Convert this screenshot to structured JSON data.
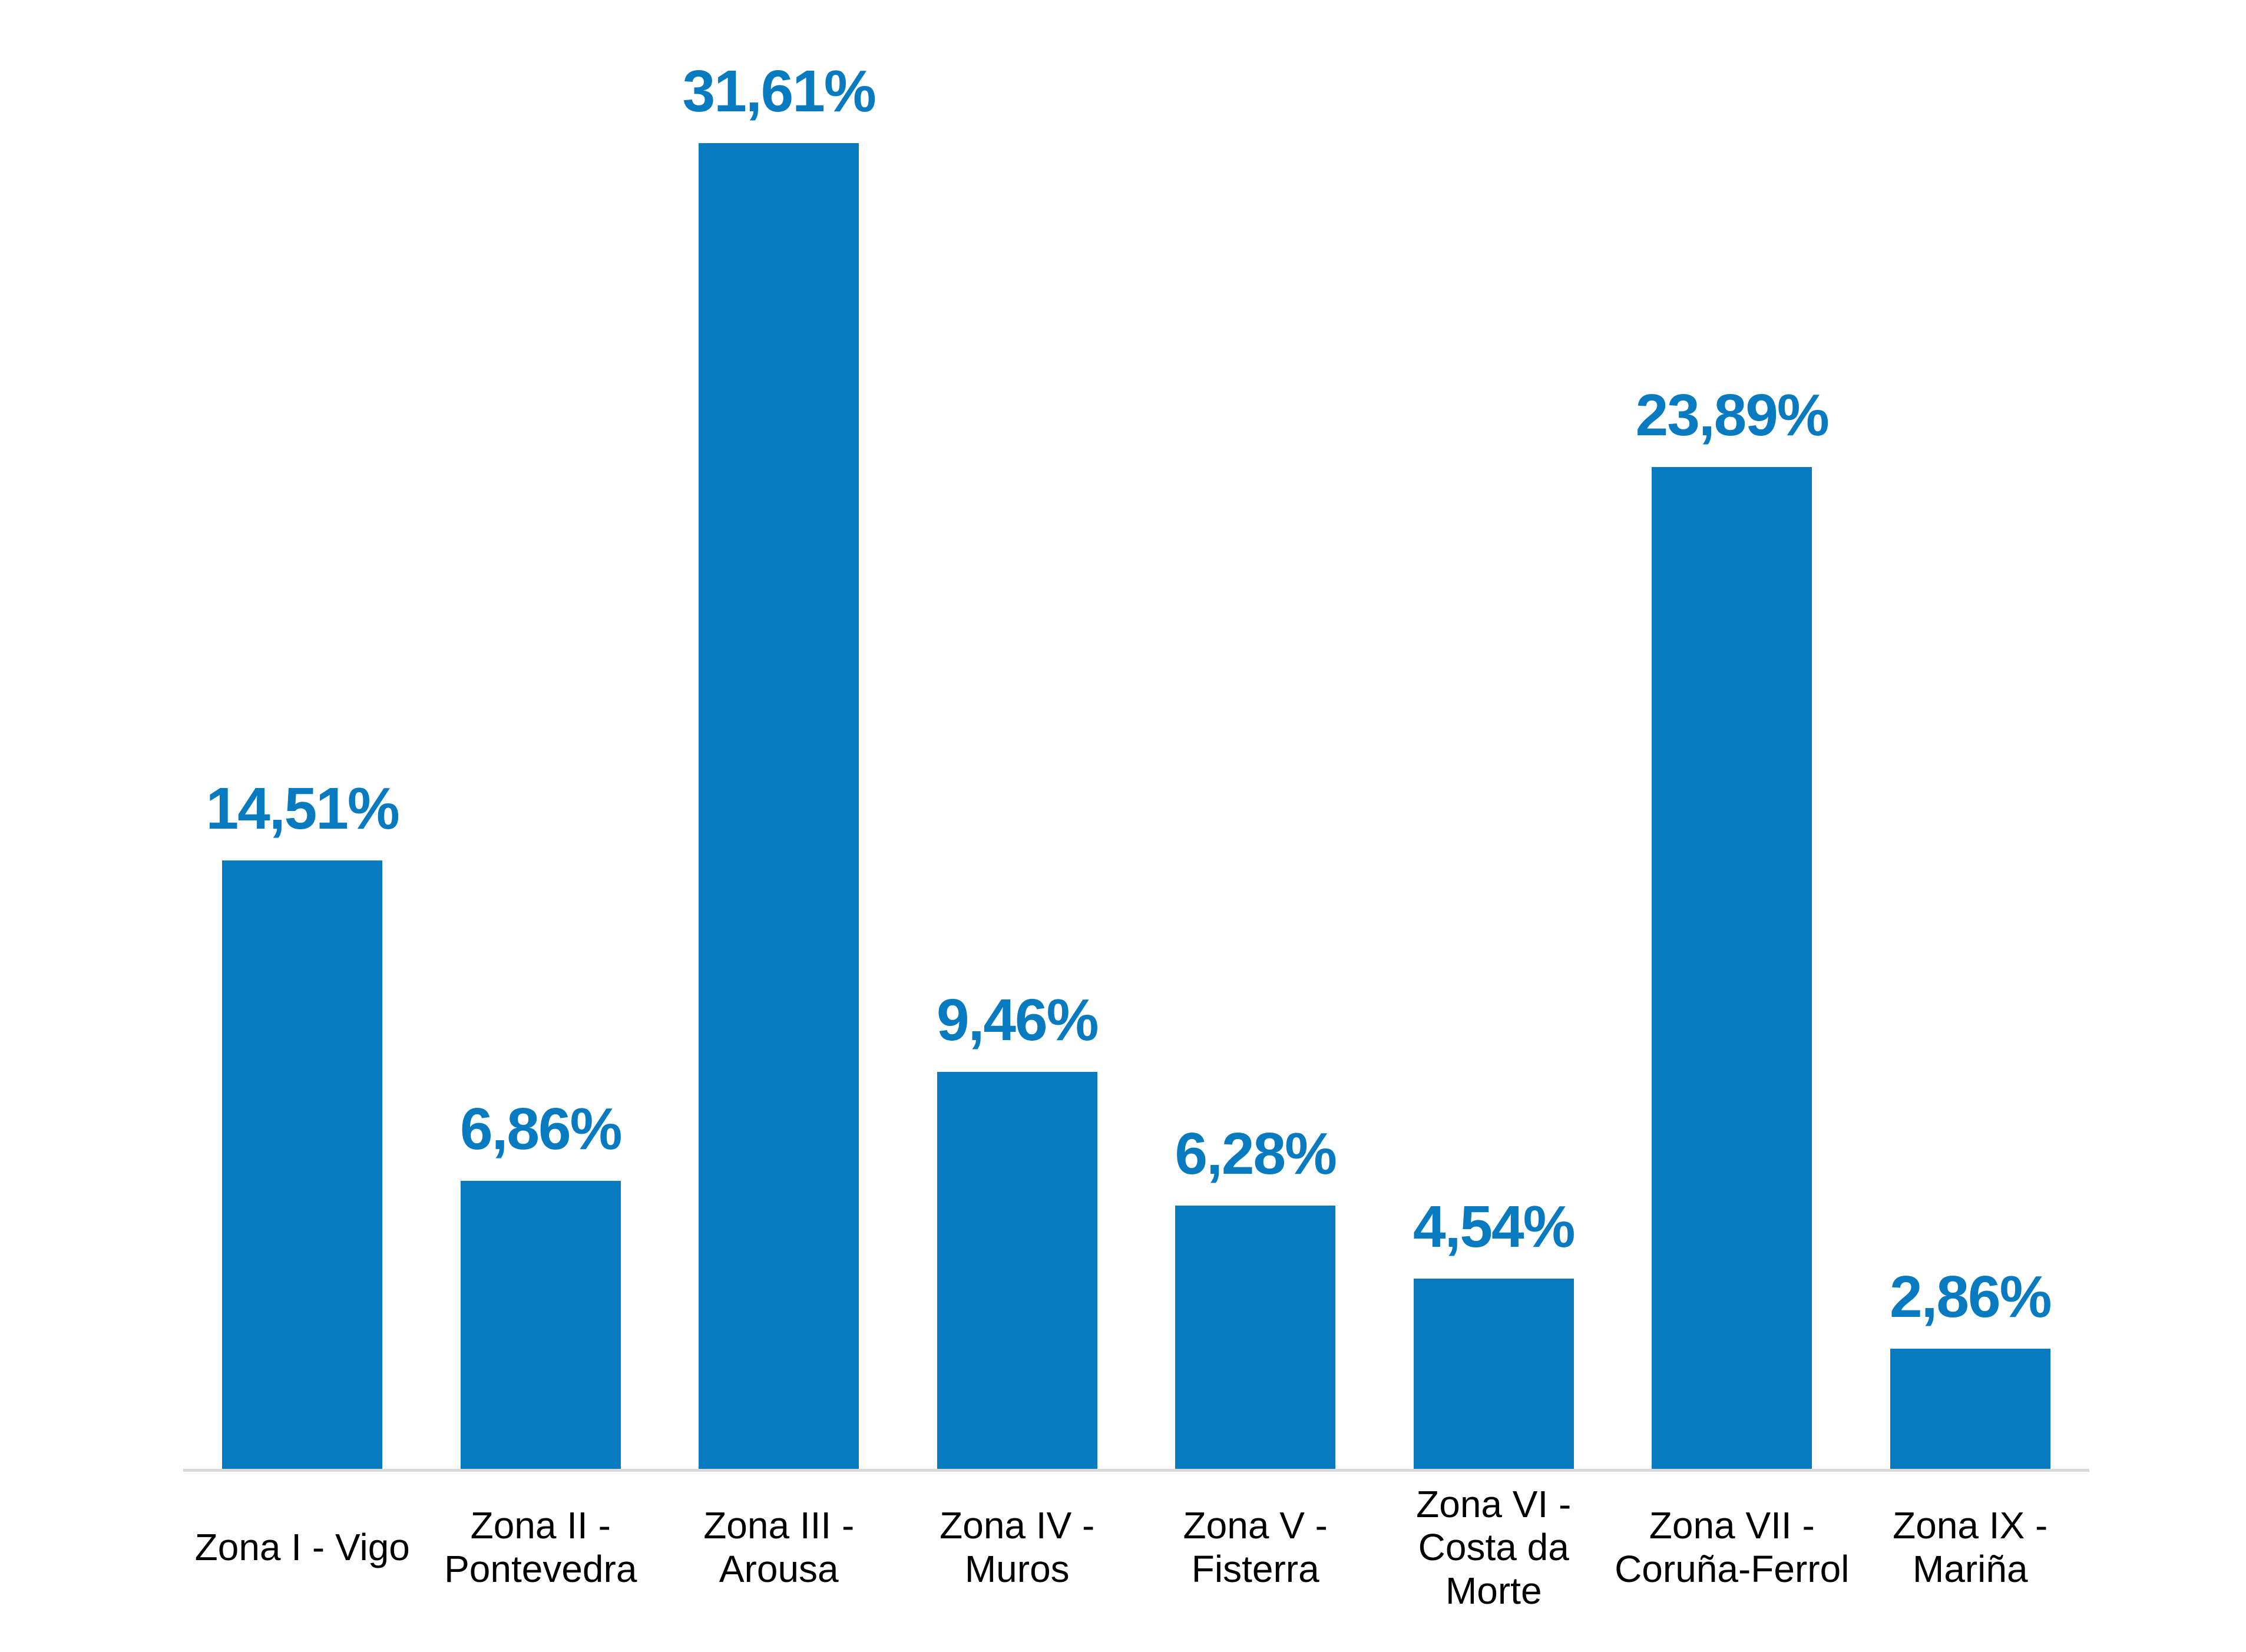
{
  "chart_data": {
    "type": "bar",
    "categories": [
      "Zona I - Vigo",
      "Zona II -\nPontevedra",
      "Zona III -\nArousa",
      "Zona IV -\nMuros",
      "Zona V -\nFisterra",
      "Zona VI -\nCosta da\nMorte",
      "Zona VII -\nCoruña-Ferrol",
      "Zona IX -\nMariña"
    ],
    "values": [
      14.51,
      6.86,
      31.61,
      9.46,
      6.28,
      4.54,
      23.89,
      2.86
    ],
    "data_labels": [
      "14,51%",
      "6,86%",
      "31,61%",
      "9,46%",
      "6,28%",
      "4,54%",
      "23,89%",
      "2,86%"
    ],
    "grid": false,
    "legend": false,
    "colors": {
      "bar": "#087ac0",
      "value_label": "#087ac0",
      "category_label": "#000000",
      "axis_line": "#d9d9d9",
      "background": "#ffffff"
    }
  }
}
